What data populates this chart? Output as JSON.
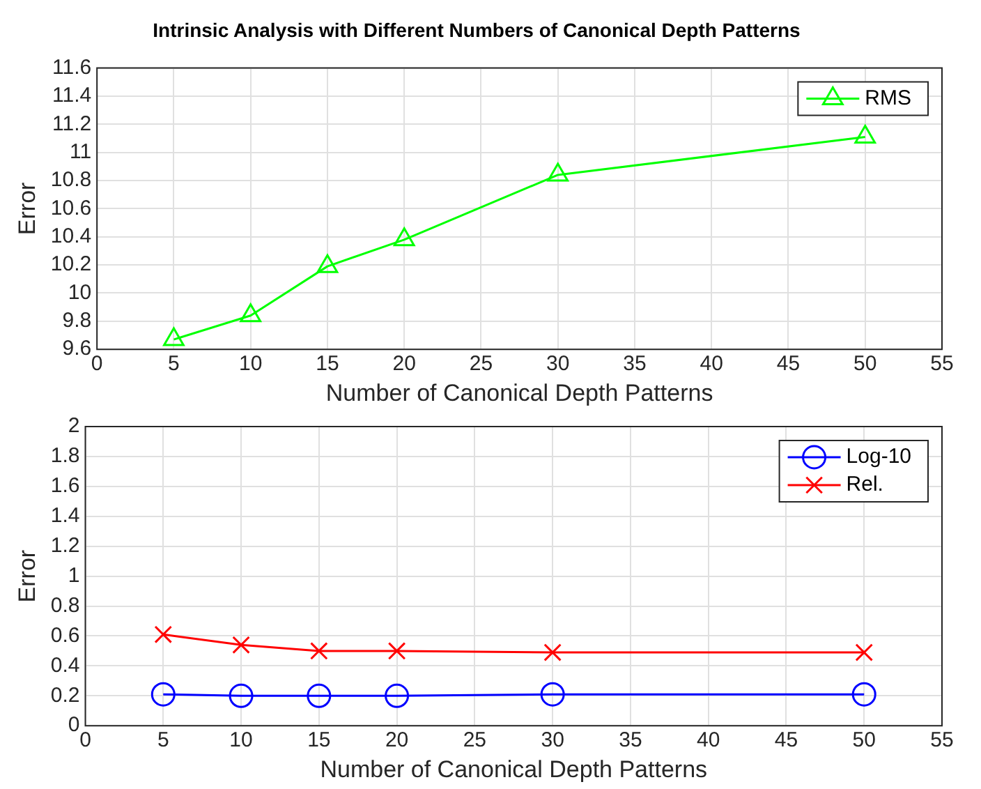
{
  "chart_data": [
    {
      "type": "line",
      "title": "Intrinsic Analysis with Different Numbers of Canonical Depth Patterns",
      "xlabel": "Number of Canonical Depth Patterns",
      "ylabel": "Error",
      "x": [
        5,
        10,
        15,
        20,
        30,
        50
      ],
      "series": [
        {
          "name": "RMS",
          "color": "#00ff00",
          "marker": "triangle",
          "values": [
            9.67,
            9.84,
            10.19,
            10.38,
            10.84,
            11.11
          ]
        }
      ],
      "xlim": [
        0,
        55
      ],
      "xticks": [
        0,
        5,
        10,
        15,
        20,
        25,
        30,
        35,
        40,
        45,
        50,
        55
      ],
      "ylim": [
        9.6,
        11.6
      ],
      "yticks": [
        9.6,
        9.8,
        10,
        10.2,
        10.4,
        10.6,
        10.8,
        11,
        11.2,
        11.4,
        11.6
      ],
      "grid": true,
      "legend": "top right",
      "line_style": "solid"
    },
    {
      "type": "line",
      "xlabel": "Number of Canonical Depth Patterns",
      "ylabel": "Error",
      "x": [
        5,
        10,
        15,
        20,
        30,
        50
      ],
      "series": [
        {
          "name": "Log-10",
          "color": "#0000ff",
          "marker": "circle",
          "values": [
            0.21,
            0.2,
            0.2,
            0.2,
            0.21,
            0.21
          ]
        },
        {
          "name": "Rel.",
          "color": "#ff0000",
          "marker": "cross",
          "values": [
            0.61,
            0.54,
            0.5,
            0.5,
            0.49,
            0.49
          ]
        }
      ],
      "xlim": [
        0,
        55
      ],
      "xticks": [
        0,
        5,
        10,
        15,
        20,
        25,
        30,
        35,
        40,
        45,
        50,
        55
      ],
      "ylim": [
        0,
        2
      ],
      "yticks": [
        0,
        0.2,
        0.4,
        0.6,
        0.8,
        1,
        1.2,
        1.4,
        1.6,
        1.8,
        2
      ],
      "grid": true,
      "legend": "top right",
      "line_style": "solid"
    }
  ]
}
